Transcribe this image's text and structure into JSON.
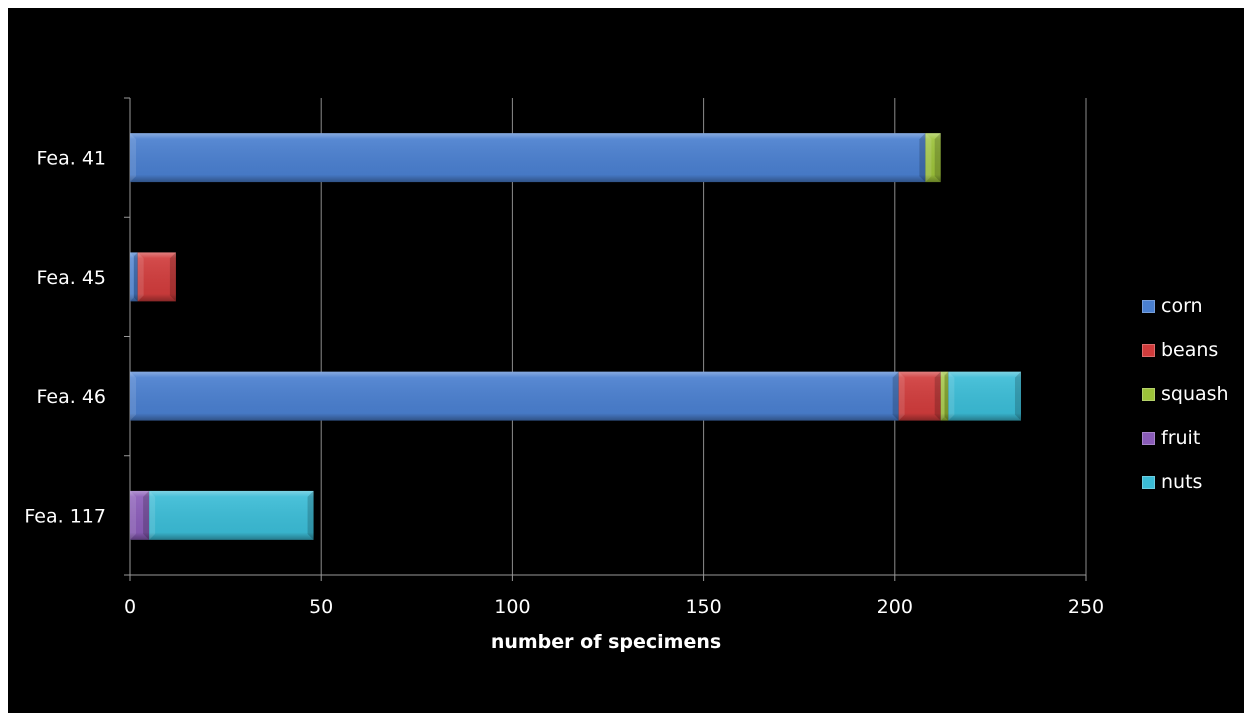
{
  "chart_data": {
    "type": "bar",
    "orientation": "horizontal",
    "stacked": true,
    "categories": [
      "Fea. 41",
      "Fea. 45",
      "Fea. 46",
      "Fea. 117"
    ],
    "series": [
      {
        "name": "corn",
        "color": "#4a7fcf",
        "values": [
          208,
          2,
          201,
          0
        ]
      },
      {
        "name": "beans",
        "color": "#d03c3c",
        "values": [
          0,
          10,
          11,
          0
        ]
      },
      {
        "name": "squash",
        "color": "#9cc23a",
        "values": [
          4,
          0,
          2,
          0
        ]
      },
      {
        "name": "fruit",
        "color": "#8a5cb8",
        "values": [
          0,
          0,
          0,
          5
        ]
      },
      {
        "name": "nuts",
        "color": "#3bbcd6",
        "values": [
          0,
          0,
          19,
          43
        ]
      }
    ],
    "xlabel": "number of specimens",
    "ylabel": "",
    "xlim": [
      0,
      250
    ],
    "xticks": [
      0,
      50,
      100,
      150,
      200,
      250
    ],
    "grid": "vertical",
    "legend": "right"
  }
}
